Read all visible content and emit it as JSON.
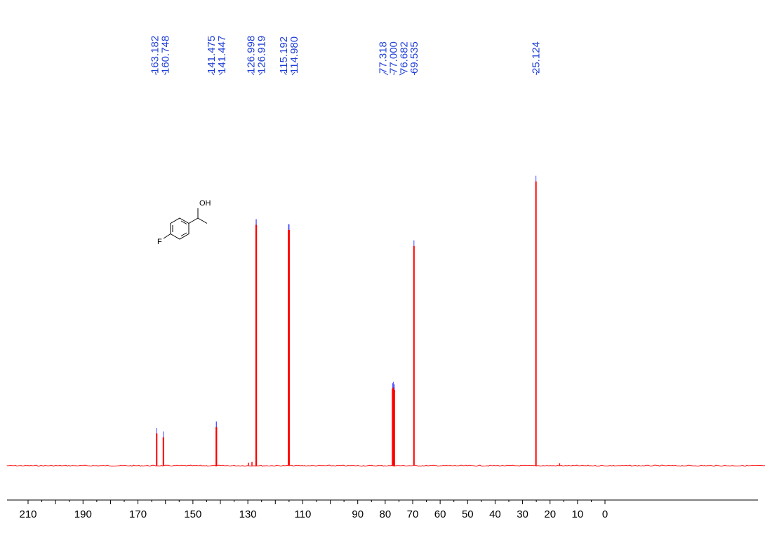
{
  "chart_data": {
    "type": "line",
    "title": "",
    "xlabel": "",
    "ylabel": "",
    "x_axis": {
      "reversed": true,
      "xlim": [
        215,
        -5
      ],
      "major_ticks": [
        210,
        190,
        170,
        150,
        130,
        110,
        90,
        80,
        70,
        60,
        50,
        40,
        30,
        20,
        10,
        0
      ],
      "tick_labels": [
        "210",
        "190",
        "170",
        "150",
        "130",
        "110",
        "90",
        "80",
        "70",
        "60",
        "50",
        "40",
        "30",
        "20",
        "10",
        "0"
      ]
    },
    "y_axis": {
      "shown": false,
      "ylim": [
        0,
        100
      ]
    },
    "grid": false,
    "colors": {
      "spectrum": "#ff0000",
      "peak_labels": "#1f3fd8",
      "peak_markers": "#4444ff",
      "axis": "#000000"
    },
    "series": [
      {
        "peaks": [
          {
            "x": 163.182,
            "y": 13.0
          },
          {
            "x": 160.748,
            "y": 11.5
          },
          {
            "x": 141.475,
            "y": 15.5
          },
          {
            "x": 141.447,
            "y": 15.5
          },
          {
            "x": 126.998,
            "y": 97.0
          },
          {
            "x": 126.919,
            "y": 97.0
          },
          {
            "x": 115.192,
            "y": 95.0
          },
          {
            "x": 114.98,
            "y": 95.0
          },
          {
            "x": 77.318,
            "y": 31.0
          },
          {
            "x": 77.0,
            "y": 31.5
          },
          {
            "x": 76.682,
            "y": 30.5
          },
          {
            "x": 69.535,
            "y": 88.5
          },
          {
            "x": 25.124,
            "y": 114.5
          }
        ],
        "minor_peaks": [
          {
            "x": 129.8,
            "y": 1.2
          },
          {
            "x": 128.5,
            "y": 1.5
          },
          {
            "x": 16.5,
            "y": 1.0
          }
        ]
      }
    ],
    "peak_labels": [
      {
        "group": [
          "163.182",
          "160.748"
        ],
        "x": [
          163.182,
          160.748
        ]
      },
      {
        "group": [
          "141.475",
          "141.447"
        ],
        "x": [
          141.475,
          141.447
        ]
      },
      {
        "group": [
          "126.998",
          "126.919"
        ],
        "x": [
          126.998,
          126.919
        ]
      },
      {
        "group": [
          "115.192",
          "114.980"
        ],
        "x": [
          115.192,
          114.98
        ]
      },
      {
        "group": [
          "77.318",
          "77.000",
          "76.682"
        ],
        "x": [
          77.318,
          77.0,
          76.682
        ]
      },
      {
        "group": [
          "69.535"
        ],
        "x": [
          69.535
        ]
      },
      {
        "group": [
          "25.124"
        ],
        "x": [
          25.124
        ]
      }
    ],
    "structure": {
      "labels": [
        "OH",
        "F"
      ]
    }
  }
}
